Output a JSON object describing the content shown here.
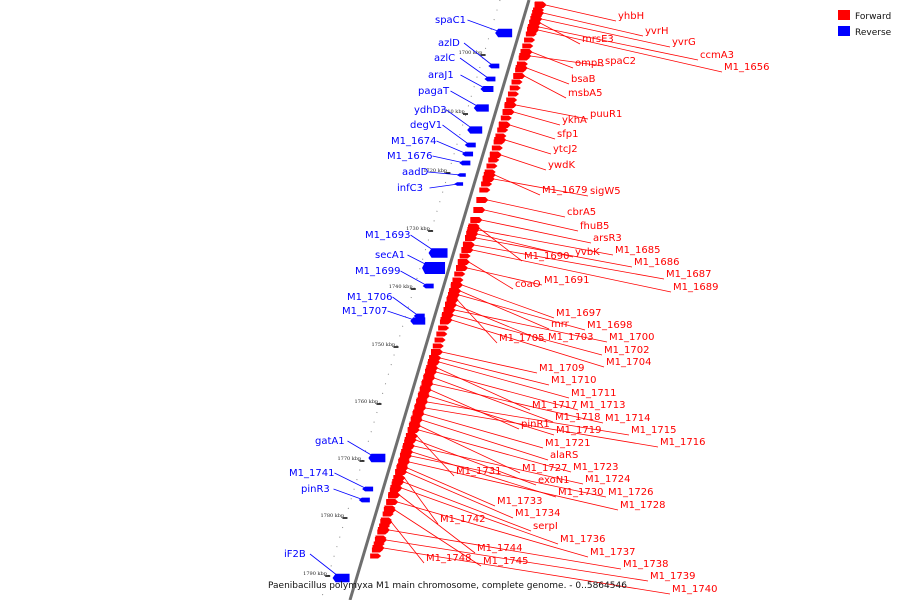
{
  "caption": "Paenibacillus polymyxa M1 main chromosome, complete genome. - 0..5864546",
  "legend": [
    {
      "label": "Forward",
      "color": "#ff0000"
    },
    {
      "label": "Reverse",
      "color": "#0000ff"
    }
  ],
  "ticks": [
    "1700 kbp",
    "1710 kbp",
    "1720 kbp",
    "1730 kbp",
    "1740 kbp",
    "1750 kbp",
    "1760 kbp",
    "1770 kbp",
    "1780 kbp",
    "1790 kbp"
  ],
  "reverse_genes": [
    "spaC1",
    "azlD",
    "azlC",
    "araJ1",
    "pagaT",
    "ydhD3",
    "degV1",
    "M1_1674",
    "M1_1676",
    "aadD",
    "infC3",
    "M1_1693",
    "secA1",
    "M1_1699",
    "M1_1706",
    "M1_1707",
    "gatA1",
    "M1_1741",
    "pinR3",
    "iF2B"
  ],
  "forward_genes": [
    "yhbH",
    "yvrH",
    "yvrG",
    "mrsE3",
    "ccmA3",
    "M1_1656",
    "ompR",
    "spaC2",
    "bsaB",
    "msbA5",
    "puuR1",
    "ykhA",
    "sfp1",
    "ytcJ2",
    "ywdK",
    "M1_1679",
    "sigW5",
    "cbrA5",
    "fhuB5",
    "arsR3",
    "M1_1685",
    "yvbK",
    "M1_1686",
    "M1_1690",
    "M1_1687",
    "M1_1689",
    "coaO",
    "M1_1691",
    "M1_1697",
    "mrr",
    "M1_1698",
    "M1_1705",
    "M1_1703",
    "M1_1700",
    "M1_1702",
    "M1_1704",
    "M1_1709",
    "M1_1710",
    "M1_1711",
    "M1_1717",
    "M1_1713",
    "M1_1718",
    "M1_1714",
    "pinR1",
    "M1_1719",
    "M1_1715",
    "M1_1716",
    "M1_1721",
    "alaRS",
    "M1_1727",
    "M1_1723",
    "M1_1731",
    "exoN1",
    "M1_1724",
    "M1_1730",
    "M1_1726",
    "M1_1728",
    "M1_1733",
    "M1_1734",
    "M1_1742",
    "serpI",
    "M1_1736",
    "M1_1744",
    "M1_1737",
    "M1_1745",
    "M1_1748",
    "M1_1738",
    "M1_1739",
    "M1_1740"
  ]
}
